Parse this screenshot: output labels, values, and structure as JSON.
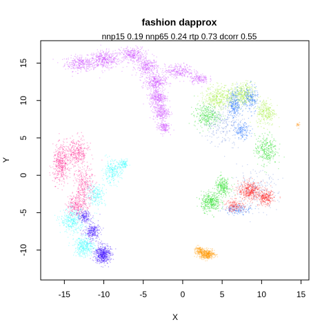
{
  "chart_data": {
    "type": "scatter",
    "title": "fashion dapprox",
    "subtitle": "nnp15 0.19 nnp65 0.24 rtp 0.73 dcorr 0.55",
    "xlabel": "X",
    "ylabel": "Y",
    "xlim": [
      -18.0,
      16.0
    ],
    "ylim": [
      -14.0,
      18.0
    ],
    "xticks": [
      -15,
      -10,
      -5,
      0,
      5,
      10,
      15
    ],
    "yticks": [
      -10,
      -5,
      0,
      5,
      10,
      15
    ],
    "grid": false,
    "legend": "none",
    "clusters": [
      {
        "color": "#cc44ff",
        "points": [
          [
            -13.0,
            15.0,
            2.0,
            1.0,
            300
          ],
          [
            -10.0,
            15.5,
            2.0,
            1.2,
            400
          ],
          [
            -6.5,
            16.2,
            1.6,
            1.0,
            300
          ],
          [
            -4.5,
            14.5,
            1.4,
            1.2,
            300
          ],
          [
            -3.5,
            12.5,
            1.3,
            1.0,
            300
          ],
          [
            -3.2,
            10.5,
            1.1,
            1.2,
            300
          ],
          [
            -2.8,
            8.5,
            1.0,
            1.1,
            250
          ],
          [
            -2.5,
            6.5,
            0.8,
            0.8,
            150
          ],
          [
            -0.5,
            14.0,
            1.8,
            0.9,
            250
          ],
          [
            2.0,
            13.0,
            1.2,
            0.7,
            150
          ]
        ]
      },
      {
        "color": "#ff1a8c",
        "points": [
          [
            -15.5,
            1.5,
            1.0,
            2.5,
            400
          ],
          [
            -13.5,
            3.0,
            1.5,
            2.0,
            350
          ],
          [
            -12.5,
            -1.5,
            1.2,
            2.5,
            300
          ],
          [
            -13.5,
            -4.0,
            1.2,
            1.5,
            250
          ]
        ]
      },
      {
        "color": "#33ffff",
        "points": [
          [
            -9.0,
            0.5,
            1.2,
            1.5,
            250
          ],
          [
            -11.0,
            -2.5,
            1.2,
            1.5,
            200
          ],
          [
            -14.0,
            -6.0,
            1.5,
            1.6,
            350
          ],
          [
            -12.5,
            -9.5,
            1.3,
            1.3,
            350
          ],
          [
            -7.5,
            1.5,
            0.6,
            0.6,
            100
          ]
        ]
      },
      {
        "color": "#3300ff",
        "points": [
          [
            -10.2,
            -10.5,
            1.0,
            1.2,
            500
          ],
          [
            -11.5,
            -7.5,
            1.0,
            1.1,
            250
          ],
          [
            -12.5,
            -5.5,
            0.8,
            0.8,
            150
          ]
        ]
      },
      {
        "color": "#99ee22",
        "points": [
          [
            4.5,
            10.5,
            1.8,
            1.5,
            350
          ],
          [
            7.5,
            10.8,
            1.6,
            1.6,
            350
          ],
          [
            10.5,
            8.5,
            1.2,
            1.8,
            250
          ]
        ]
      },
      {
        "color": "#11dd11",
        "points": [
          [
            3.0,
            8.0,
            1.6,
            1.5,
            300
          ],
          [
            10.5,
            3.5,
            1.4,
            2.0,
            300
          ],
          [
            3.5,
            -3.5,
            1.2,
            1.3,
            350
          ],
          [
            5.0,
            -1.5,
            1.0,
            1.2,
            250
          ]
        ]
      },
      {
        "color": "#1166ff",
        "points": [
          [
            6.5,
            9.5,
            0.8,
            2.0,
            250
          ],
          [
            8.5,
            10.2,
            1.0,
            1.8,
            200
          ],
          [
            7.5,
            6.0,
            1.0,
            1.0,
            150
          ],
          [
            7.0,
            -4.5,
            1.8,
            0.6,
            150
          ]
        ]
      },
      {
        "color": "#6688dd",
        "points": [
          [
            5.0,
            7.0,
            2.5,
            3.0,
            250
          ],
          [
            9.0,
            -2.0,
            3.0,
            2.5,
            200
          ]
        ]
      },
      {
        "color": "#ff1a1a",
        "points": [
          [
            8.5,
            -2.0,
            1.5,
            1.2,
            400
          ],
          [
            10.5,
            -3.0,
            1.0,
            1.0,
            250
          ],
          [
            6.5,
            -4.0,
            1.2,
            0.8,
            150
          ]
        ]
      },
      {
        "color": "#ff9900",
        "points": [
          [
            3.0,
            -10.5,
            1.0,
            0.6,
            400
          ],
          [
            2.0,
            -10.0,
            0.6,
            0.6,
            120
          ]
        ]
      },
      {
        "color": "#ffaa44",
        "points": [
          [
            14.6,
            6.8,
            0.25,
            0.35,
            30
          ]
        ]
      }
    ]
  }
}
